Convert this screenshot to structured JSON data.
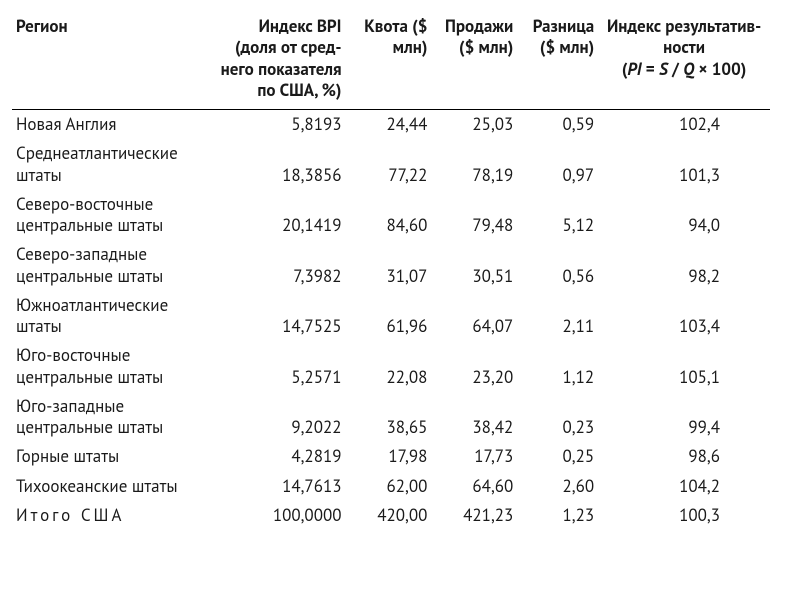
{
  "table": {
    "headers": {
      "region": "Регион",
      "bpi": "Индекс BPI (доля от сред­него показате­ля по США, %)",
      "quota": "Квота ($ млн)",
      "sales": "Про­дажи ($ млн)",
      "diff": "Раз­ница ($ млн)",
      "pi": "Индекс результатив­ности"
    },
    "pi_formula_prefix": "(",
    "pi_formula_PI": "PI",
    "pi_formula_eq": " = ",
    "pi_formula_S": "S",
    "pi_formula_div": " / ",
    "pi_formula_Q": "Q",
    "pi_formula_suffix": " × 100)",
    "rows": [
      {
        "region": "Новая Англия",
        "bpi": "5,8193",
        "quota": "24,44",
        "sales": "25,03",
        "diff": "0,59",
        "pi": "102,4"
      },
      {
        "region": "Среднеатлантические штаты",
        "bpi": "18,3856",
        "quota": "77,22",
        "sales": "78,19",
        "diff": "0,97",
        "pi": "101,3"
      },
      {
        "region": "Северо-восточные центральные штаты",
        "bpi": "20,1419",
        "quota": "84,60",
        "sales": "79,48",
        "diff": "5,12",
        "pi": "94,0"
      },
      {
        "region": "Северо-западные центральные штаты",
        "bpi": "7,3982",
        "quota": "31,07",
        "sales": "30,51",
        "diff": "0,56",
        "pi": "98,2"
      },
      {
        "region": "Южноатлантические штаты",
        "bpi": "14,7525",
        "quota": "61,96",
        "sales": "64,07",
        "diff": "2,11",
        "pi": "103,4"
      },
      {
        "region": "Юго-восточные центральные штаты",
        "bpi": "5,2571",
        "quota": "22,08",
        "sales": "23,20",
        "diff": "1,12",
        "pi": "105,1"
      },
      {
        "region": "Юго-западные центральные штаты",
        "bpi": "9,2022",
        "quota": "38,65",
        "sales": "38,42",
        "diff": "0,23",
        "pi": "99,4"
      },
      {
        "region": "Горные штаты",
        "bpi": "4,2819",
        "quota": "17,98",
        "sales": "17,73",
        "diff": "0,25",
        "pi": "98,6"
      },
      {
        "region": "Тихоокеанские штаты",
        "bpi": "14,7613",
        "quota": "62,00",
        "sales": "64,60",
        "diff": "2,60",
        "pi": "104,2"
      }
    ],
    "total": {
      "region_spaced": "Итого США",
      "bpi": "100,0000",
      "quota": "420,00",
      "sales": "421,23",
      "diff": "1,23",
      "pi": "100,3"
    }
  }
}
